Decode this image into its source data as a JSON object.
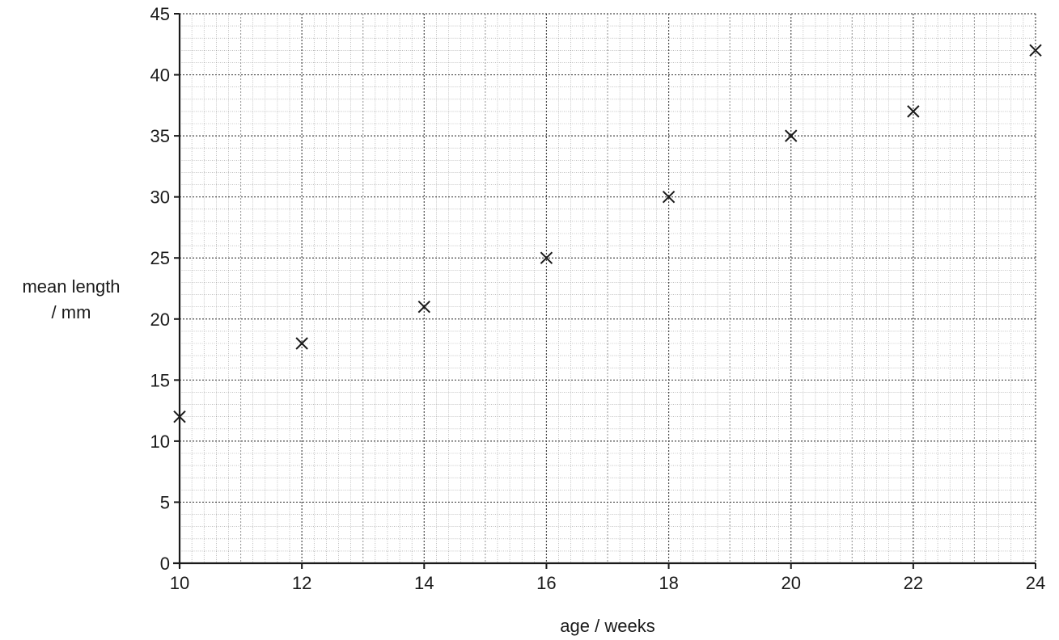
{
  "chart_data": {
    "type": "scatter",
    "title": "",
    "xlabel": "age / weeks",
    "ylabel_lines": [
      "mean length",
      "/ mm"
    ],
    "xlim": [
      10,
      24
    ],
    "ylim": [
      0,
      45
    ],
    "x_ticks": [
      10,
      12,
      14,
      16,
      18,
      20,
      22,
      24
    ],
    "y_ticks": [
      0,
      5,
      10,
      15,
      20,
      25,
      30,
      35,
      40,
      45
    ],
    "grid": true,
    "marker": "x",
    "series": [
      {
        "x": [
          10,
          12,
          14,
          16,
          18,
          20,
          22,
          24
        ],
        "y": [
          12,
          18,
          21,
          25,
          30,
          35,
          37,
          42
        ]
      }
    ],
    "colors": {
      "axis": "#1a1a1a",
      "grid_major": "#4a4a4a",
      "grid_minor": "#9a9a9a",
      "marker": "#1a1a1a"
    }
  }
}
